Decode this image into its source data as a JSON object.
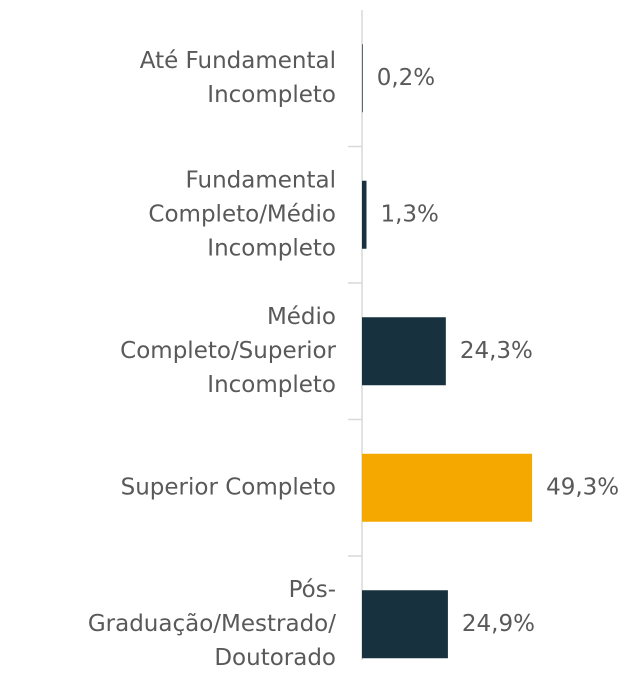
{
  "chart_data": {
    "type": "barh",
    "categories": [
      [
        "Até Fundamental",
        "Incompleto"
      ],
      [
        "Fundamental",
        "Completo/Médio",
        "Incompleto"
      ],
      [
        "Médio",
        "Completo/Superior",
        "Incompleto"
      ],
      [
        "Superior Completo"
      ],
      [
        "Pós-",
        "Graduação/Mestrado/",
        "Doutorado"
      ]
    ],
    "values": [
      0.2,
      1.3,
      24.3,
      49.3,
      24.9
    ],
    "value_labels": [
      "0,2%",
      "1,3%",
      "24,3%",
      "49,3%",
      "24,9%"
    ],
    "colors": [
      "#17313f",
      "#17313f",
      "#17313f",
      "#f5a800",
      "#17313f"
    ],
    "xlim": [
      0,
      50
    ]
  }
}
